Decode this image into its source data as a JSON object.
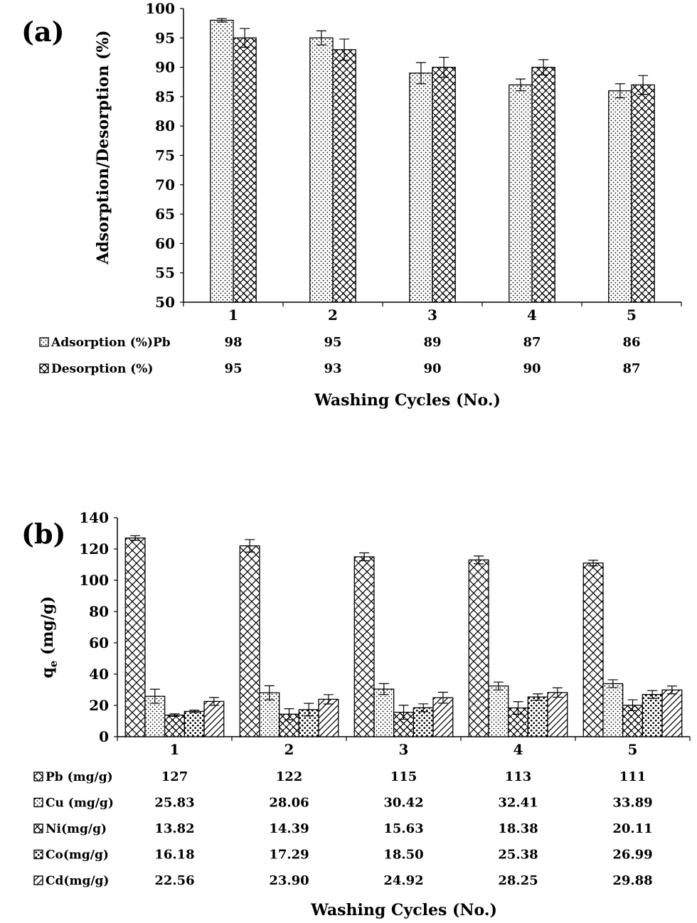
{
  "chart_data": [
    {
      "panel_label": "(a)",
      "type": "bar",
      "categories": [
        "1",
        "2",
        "3",
        "4",
        "5"
      ],
      "series": [
        {
          "name": "Adsorption (%)Pb",
          "values": [
            98,
            95,
            89,
            87,
            86
          ],
          "errors": [
            0.3,
            1.2,
            1.8,
            1.0,
            1.2
          ],
          "pattern": "dots"
        },
        {
          "name": "Desorption (%)",
          "values": [
            95,
            93,
            90,
            90,
            87
          ],
          "errors": [
            1.6,
            1.8,
            1.7,
            1.3,
            1.6
          ],
          "pattern": "weave"
        }
      ],
      "table": [
        {
          "label": "Adsorption (%)Pb",
          "values": [
            "98",
            "95",
            "89",
            "87",
            "86"
          ]
        },
        {
          "label": "Desorption (%)",
          "values": [
            "95",
            "93",
            "90",
            "90",
            "87"
          ]
        }
      ],
      "xlabel": "Washing Cycles (No.)",
      "ylabel": "Adsorption/Desorption (%)",
      "ylim": [
        50,
        100
      ],
      "yticks": [
        "50",
        "55",
        "60",
        "65",
        "70",
        "75",
        "80",
        "85",
        "90",
        "95",
        "100"
      ],
      "grid": false
    },
    {
      "panel_label": "(b)",
      "type": "bar",
      "categories": [
        "1",
        "2",
        "3",
        "4",
        "5"
      ],
      "series": [
        {
          "name": "Pb (mg/g)",
          "values": [
            127,
            122,
            115,
            113,
            111
          ],
          "errors": [
            1.5,
            4,
            2.5,
            2.5,
            1.8
          ],
          "pattern": "crosshatch"
        },
        {
          "name": "Cu (mg/g)",
          "values": [
            25.83,
            28.06,
            30.42,
            32.41,
            33.89
          ],
          "errors": [
            4.5,
            4.5,
            3.5,
            2.5,
            2.5
          ],
          "pattern": "dots"
        },
        {
          "name": "Ni(mg/g)",
          "values": [
            13.82,
            14.39,
            15.63,
            18.38,
            20.11
          ],
          "errors": [
            0.8,
            3.5,
            4.5,
            4,
            3.5
          ],
          "pattern": "weave"
        },
        {
          "name": "Co(mg/g)",
          "values": [
            16.18,
            17.29,
            18.5,
            25.38,
            26.99
          ],
          "errors": [
            0.8,
            4,
            2.5,
            2,
            2.5
          ],
          "pattern": "bigdots"
        },
        {
          "name": "Cd(mg/g)",
          "values": [
            22.56,
            23.9,
            24.92,
            28.25,
            29.88
          ],
          "errors": [
            2.5,
            3,
            3.5,
            3,
            2.5
          ],
          "pattern": "diagonal"
        }
      ],
      "table": [
        {
          "label": "Pb (mg/g)",
          "values": [
            "127",
            "122",
            "115",
            "113",
            "111"
          ]
        },
        {
          "label": "Cu (mg/g)",
          "values": [
            "25.83",
            "28.06",
            "30.42",
            "32.41",
            "33.89"
          ]
        },
        {
          "label": "Ni(mg/g)",
          "values": [
            "13.82",
            "14.39",
            "15.63",
            "18.38",
            "20.11"
          ]
        },
        {
          "label": "Co(mg/g)",
          "values": [
            "16.18",
            "17.29",
            "18.50",
            "25.38",
            "26.99"
          ]
        },
        {
          "label": "Cd(mg/g)",
          "values": [
            "22.56",
            "23.90",
            "24.92",
            "28.25",
            "29.88"
          ]
        }
      ],
      "xlabel": "Washing Cycles (No.)",
      "ylabel_main": "q",
      "ylabel_sub": "e",
      "ylabel_rest": " (mg/g)",
      "ylim": [
        0,
        140
      ],
      "yticks": [
        "0",
        "20",
        "40",
        "60",
        "80",
        "100",
        "120",
        "140"
      ],
      "grid": false
    }
  ]
}
